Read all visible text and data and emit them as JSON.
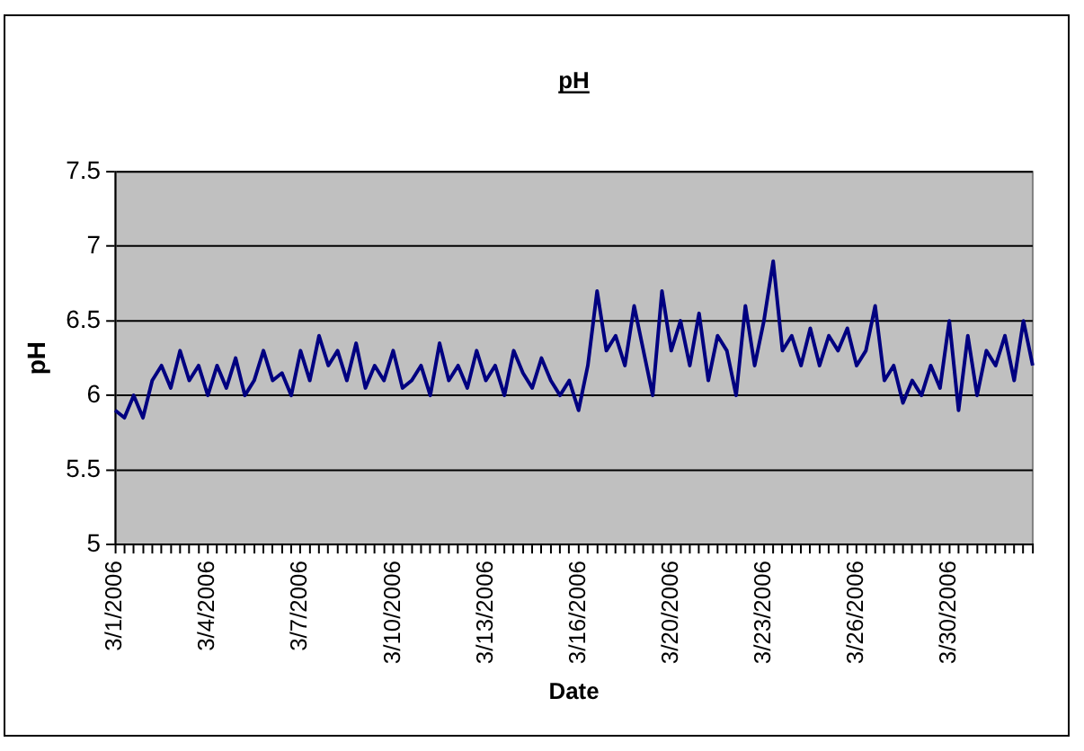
{
  "chart_data": {
    "type": "line",
    "title": "pH",
    "xlabel": "Date",
    "ylabel": "pH",
    "categories": [
      "3/1/2006",
      null,
      null,
      null,
      null,
      null,
      null,
      null,
      null,
      null,
      "3/4/2006",
      null,
      null,
      null,
      null,
      null,
      null,
      null,
      null,
      null,
      "3/7/2006",
      null,
      null,
      null,
      null,
      null,
      null,
      null,
      null,
      null,
      "3/10/2006",
      null,
      null,
      null,
      null,
      null,
      null,
      null,
      null,
      null,
      "3/13/2006",
      null,
      null,
      null,
      null,
      null,
      null,
      null,
      null,
      null,
      "3/16/2006",
      null,
      null,
      null,
      null,
      null,
      null,
      null,
      null,
      null,
      "3/20/2006",
      null,
      null,
      null,
      null,
      null,
      null,
      null,
      null,
      null,
      "3/23/2006",
      null,
      null,
      null,
      null,
      null,
      null,
      null,
      null,
      null,
      "3/26/2006",
      null,
      null,
      null,
      null,
      null,
      null,
      null,
      null,
      null,
      "3/30/2006",
      null,
      null,
      null,
      null,
      null,
      null,
      null,
      null,
      null
    ],
    "series": [
      {
        "color": "#000080",
        "values": [
          5.9,
          5.85,
          6.0,
          5.85,
          6.1,
          6.2,
          6.05,
          6.3,
          6.1,
          6.2,
          6.0,
          6.2,
          6.05,
          6.25,
          6.0,
          6.1,
          6.3,
          6.1,
          6.15,
          6.0,
          6.3,
          6.1,
          6.4,
          6.2,
          6.3,
          6.1,
          6.35,
          6.05,
          6.2,
          6.1,
          6.3,
          6.05,
          6.1,
          6.2,
          6.0,
          6.35,
          6.1,
          6.2,
          6.05,
          6.3,
          6.1,
          6.2,
          6.0,
          6.3,
          6.15,
          6.05,
          6.25,
          6.1,
          6.0,
          6.1,
          5.9,
          6.2,
          6.7,
          6.3,
          6.4,
          6.2,
          6.6,
          6.3,
          6.0,
          6.7,
          6.3,
          6.5,
          6.2,
          6.55,
          6.1,
          6.4,
          6.3,
          6.0,
          6.6,
          6.2,
          6.5,
          6.9,
          6.3,
          6.4,
          6.2,
          6.45,
          6.2,
          6.4,
          6.3,
          6.45,
          6.2,
          6.3,
          6.6,
          6.1,
          6.2,
          5.95,
          6.1,
          6.0,
          6.2,
          6.05,
          6.5,
          5.9,
          6.4,
          6.0,
          6.3,
          6.2,
          6.4,
          6.1,
          6.5,
          6.2
        ]
      }
    ],
    "ylim": [
      5,
      7.5
    ],
    "yticks": [
      5,
      5.5,
      6,
      6.5,
      7,
      7.5
    ],
    "grid": "y",
    "legend": false,
    "marker": "none",
    "line_style": "solid"
  }
}
